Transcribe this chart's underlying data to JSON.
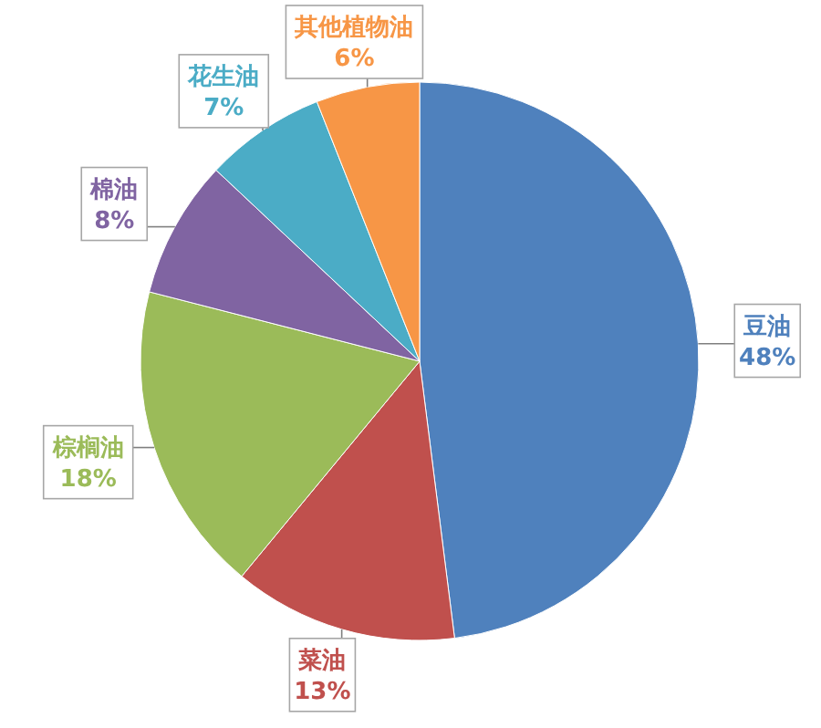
{
  "chart_data": {
    "type": "pie",
    "categories": [
      "豆油",
      "菜油",
      "棕榈油",
      "棉油",
      "花生油",
      "其他植物油"
    ],
    "values": [
      48,
      13,
      18,
      8,
      7,
      6
    ],
    "colors": [
      "#4f81bd",
      "#c0504d",
      "#9bbb59",
      "#8064a2",
      "#4bacc6",
      "#f79646"
    ],
    "value_labels": [
      "48%",
      "13%",
      "18%",
      "8%",
      "7%",
      "6%"
    ]
  }
}
